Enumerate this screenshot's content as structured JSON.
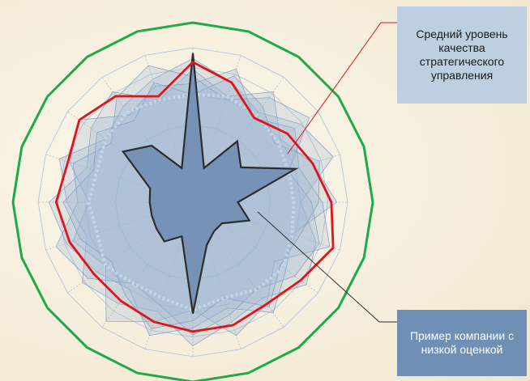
{
  "colors": {
    "background": "#f7f0df",
    "max_polygon": "#1faa4a",
    "average_line": "#e0141b",
    "low_company_fill": "#7390b5",
    "low_company_stroke": "#2d2d2d",
    "companies_fill": "#9fb8d3",
    "callout_avg_bg": "#bcd0e2",
    "callout_low_bg": "#6f8fb5"
  },
  "callouts": {
    "average": "Средний уровень качества стратегического управления",
    "low_company": "Пример компании с низкой оценкой"
  },
  "chart_data": {
    "type": "radar",
    "axes_count": 20,
    "rmax": 1.0,
    "grid_rings": [
      0.43,
      0.6,
      0.75,
      0.86
    ],
    "series": [
      {
        "values": [
          1.0,
          1.0,
          1.0,
          1.0,
          1.0,
          1.0,
          1.0,
          1.0,
          1.0,
          1.0,
          1.0,
          1.0,
          1.0,
          1.0,
          1.0,
          1.0,
          1.0,
          1.0,
          1.0,
          1.0
        ]
      },
      {
        "values": [
          0.78,
          0.7,
          0.58,
          0.65,
          0.7,
          0.77,
          0.82,
          0.74,
          0.7,
          0.72,
          0.72,
          0.7,
          0.68,
          0.68,
          0.72,
          0.76,
          0.73,
          0.78,
          0.73,
          0.62
        ]
      },
      {
        "values": [
          0.83,
          0.2,
          0.42,
          0.33,
          0.6,
          0.25,
          0.33,
          0.2,
          0.2,
          0.25,
          0.62,
          0.2,
          0.27,
          0.25,
          0.24,
          0.24,
          0.25,
          0.48,
          0.39,
          0.2
        ]
      }
    ],
    "background_series": [
      [
        0.8,
        0.7,
        0.62,
        0.74,
        0.82,
        0.6,
        0.72,
        0.78,
        0.66,
        0.7,
        0.8,
        0.64,
        0.7,
        0.76,
        0.62,
        0.7,
        0.78,
        0.6,
        0.66,
        0.72
      ],
      [
        0.74,
        0.62,
        0.76,
        0.6,
        0.7,
        0.8,
        0.58,
        0.64,
        0.76,
        0.62,
        0.7,
        0.78,
        0.6,
        0.66,
        0.74,
        0.8,
        0.62,
        0.7,
        0.76,
        0.6
      ],
      [
        0.66,
        0.78,
        0.58,
        0.7,
        0.62,
        0.72,
        0.8,
        0.56,
        0.7,
        0.78,
        0.6,
        0.7,
        0.82,
        0.6,
        0.7,
        0.58,
        0.72,
        0.78,
        0.6,
        0.68
      ],
      [
        0.7,
        0.6,
        0.72,
        0.8,
        0.56,
        0.66,
        0.74,
        0.7,
        0.6,
        0.66,
        0.74,
        0.6,
        0.56,
        0.72,
        0.8,
        0.64,
        0.7,
        0.56,
        0.72,
        0.8
      ],
      [
        0.6,
        0.74,
        0.66,
        0.56,
        0.74,
        0.7,
        0.62,
        0.6,
        0.72,
        0.56,
        0.66,
        0.74,
        0.64,
        0.56,
        0.66,
        0.72,
        0.58,
        0.66,
        0.56,
        0.7
      ]
    ],
    "dotted_series": [
      0.6,
      0.62,
      0.6,
      0.58,
      0.56,
      0.56,
      0.58,
      0.62,
      0.6,
      0.56,
      0.6,
      0.56,
      0.56,
      0.6,
      0.56,
      0.58,
      0.56,
      0.6,
      0.62,
      0.6
    ]
  }
}
